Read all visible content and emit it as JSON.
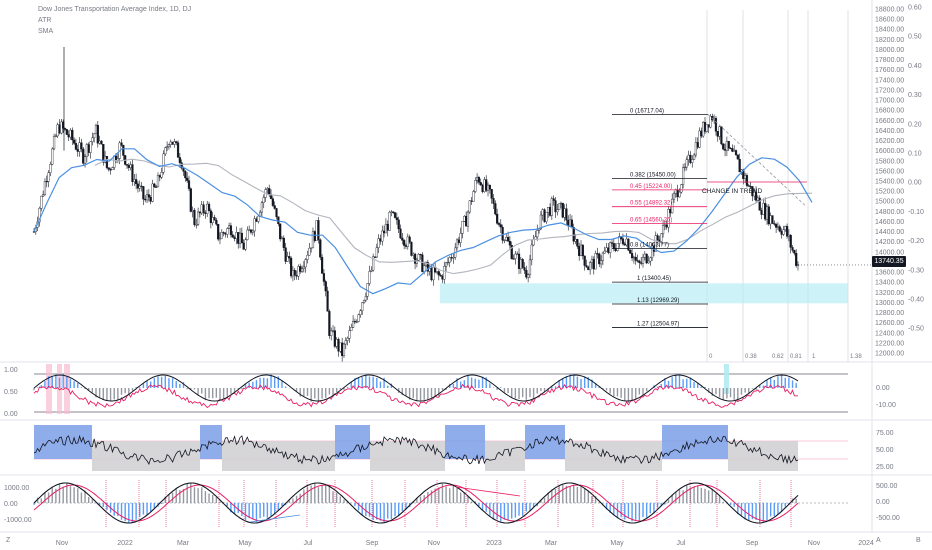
{
  "chart_data": {
    "type": "candlestick",
    "title": "Dow Jones Transportation Average Index, 1D, DJ",
    "legend": [
      "ATR",
      "SMA"
    ],
    "last_price": "13740.35",
    "price_axis": [
      "18800.00",
      "18600.00",
      "18400.00",
      "18200.00",
      "18000.00",
      "17800.00",
      "17600.00",
      "17400.00",
      "17200.00",
      "17000.00",
      "16800.00",
      "16600.00",
      "16400.00",
      "16200.00",
      "16000.00",
      "15800.00",
      "15600.00",
      "15400.00",
      "15200.00",
      "15000.00",
      "14800.00",
      "14600.00",
      "14400.00",
      "14200.00",
      "14000.00",
      "13800.00",
      "13600.00",
      "13400.00",
      "13200.00",
      "13000.00",
      "12800.00",
      "12600.00",
      "12400.00",
      "12200.00",
      "12000.00"
    ],
    "secondary_axis": [
      "0.60",
      "0.50",
      "0.40",
      "0.30",
      "0.20",
      "0.10",
      "0.00",
      "-0.10",
      "-0.20",
      "-0.30",
      "-0.40",
      "-0.50"
    ],
    "time_axis": [
      "Nov",
      "2022",
      "Mar",
      "May",
      "Jul",
      "Sep",
      "Nov",
      "2023",
      "Mar",
      "May",
      "Jul",
      "Sep",
      "Nov",
      "2024"
    ],
    "price_series": [
      14400,
      15500,
      16500,
      16250,
      15900,
      16400,
      15600,
      16100,
      15500,
      15000,
      15300,
      16300,
      15800,
      14600,
      14900,
      14300,
      14500,
      14100,
      14700,
      15300,
      14300,
      13500,
      13900,
      14500,
      12400,
      12000,
      12600,
      13300,
      14200,
      14700,
      14300,
      13900,
      13600,
      13500,
      14000,
      14600,
      15500,
      15100,
      14400,
      13900,
      13600,
      14600,
      14900,
      14800,
      14200,
      13700,
      13900,
      14100,
      14300,
      13700,
      14000,
      14400,
      15100,
      15700,
      16300,
      16717,
      16100,
      15800,
      15300,
      14900,
      14600,
      14400,
      13740
    ],
    "fib_levels": [
      {
        "label": "0 (16717.04)",
        "price": 16717.04
      },
      {
        "label": "0.382 (15450.00)",
        "price": 15450
      },
      {
        "label": "0.45 (15224.00)",
        "price": 15224
      },
      {
        "label": "0.55 (14892.32)",
        "price": 14892.32
      },
      {
        "label": "0.65 (14560.26)",
        "price": 14560.26
      },
      {
        "label": "0.8 (14063.77)",
        "price": 14063.77
      },
      {
        "label": "1 (13400.45)",
        "price": 13400.45
      },
      {
        "label": "1.13 (12969.29)",
        "price": 12969.29
      },
      {
        "label": "1.27 (12504.97)",
        "price": 12504.97
      }
    ],
    "annotation": "CHANGE IN TREND",
    "time_markers": [
      "0",
      "0.38",
      "0.62",
      "0.81",
      "1",
      "1.38"
    ],
    "oscillator_1": {
      "left_axis": [
        "1.00",
        "0.50",
        "0.00"
      ],
      "right_axis": [
        "0.00",
        "-10.00"
      ]
    },
    "oscillator_2": {
      "right_axis": [
        "75.00",
        "50.00",
        "25.00"
      ]
    },
    "oscillator_3": {
      "left_axis": [
        "1000.00",
        "0.00",
        "-1000.00"
      ],
      "right_axis": [
        "500.00",
        "0.00",
        "-500.00"
      ]
    },
    "colors": {
      "up": "#131722",
      "down": "#131722",
      "sma_blue": "#4a90e2",
      "sma_gray": "#b2b5be",
      "fib_red": "#e91e63",
      "fib_dark": "#131722",
      "zone": "#b2ebf2",
      "rsi_bg_blue": "#7b9fe8",
      "rsi_bg_gray": "#cfcfd2",
      "hist_blue": "#5b9cf6",
      "hist_gray": "#9598a1",
      "line_red": "#e91e63"
    }
  },
  "ui": {
    "left_tool": "Z",
    "right_tools": [
      "A",
      "B"
    ]
  }
}
